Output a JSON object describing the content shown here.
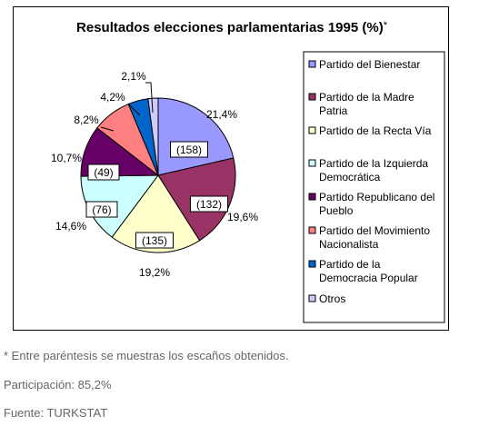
{
  "chart_data": {
    "type": "pie",
    "title": "Resultados elecciones parlamentarias 1995 (%)",
    "title_mark": "*",
    "slices": [
      {
        "name": "Partido del Bienestar",
        "legend_lines": [
          "Partido del Bienestar"
        ],
        "value": 21.4,
        "label": "21,4%",
        "seats": "(158)",
        "color": "#9999ff"
      },
      {
        "name": "Partido de la Madre Patria",
        "legend_lines": [
          "Partido de la Madre",
          "Patria"
        ],
        "value": 19.6,
        "label": "19,6%",
        "seats": "(132)",
        "color": "#993366"
      },
      {
        "name": "Partido de la Recta Vía",
        "legend_lines": [
          "Partido de la Recta Vía"
        ],
        "value": 19.2,
        "label": "19,2%",
        "seats": "(135)",
        "color": "#ffffcc"
      },
      {
        "name": "Partido de la Izquierda Democrática",
        "legend_lines": [
          "Partido de la Izquierda",
          "Democrática"
        ],
        "value": 14.6,
        "label": "14,6%",
        "seats": "(76)",
        "color": "#ccffff"
      },
      {
        "name": "Partido Republicano del Pueblo",
        "legend_lines": [
          "Partido Republicano del",
          "Pueblo"
        ],
        "value": 10.7,
        "label": "10,7%",
        "seats": "(49)",
        "color": "#660066"
      },
      {
        "name": "Partido del Movimiento Nacionalista",
        "legend_lines": [
          "Partido del Movimiento",
          "Nacionalista"
        ],
        "value": 8.2,
        "label": "8,2%",
        "seats": "",
        "color": "#ff8080"
      },
      {
        "name": "Partido de la Democracia Popular",
        "legend_lines": [
          "Partido de la",
          "Democracia Popular"
        ],
        "value": 4.2,
        "label": "4,2%",
        "seats": "",
        "color": "#0066cc"
      },
      {
        "name": "Otros",
        "legend_lines": [
          "Otros"
        ],
        "value": 2.1,
        "label": "2,1%",
        "seats": "",
        "color": "#ccccff"
      }
    ],
    "legend_position": "right"
  },
  "notes": {
    "footnote": "* Entre paréntesis se muestras los escaños obtenidos.",
    "participation": "Participación: 85,2%",
    "source": "Fuente: TURKSTAT"
  }
}
